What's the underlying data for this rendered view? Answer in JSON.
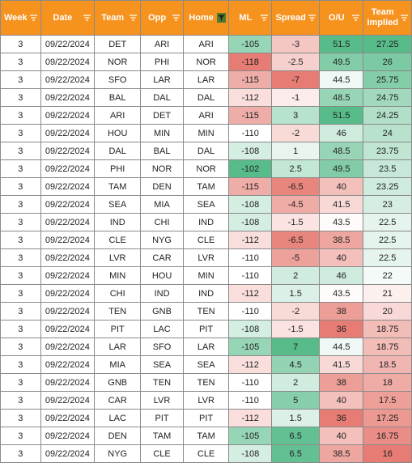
{
  "header": {
    "color": "#f6921e",
    "columns": [
      {
        "key": "week",
        "label": "Week"
      },
      {
        "key": "date",
        "label": "Date"
      },
      {
        "key": "team",
        "label": "Team"
      },
      {
        "key": "opp",
        "label": "Opp"
      },
      {
        "key": "home",
        "label": "Home",
        "filter_active": true
      },
      {
        "key": "ml",
        "label": "ML"
      },
      {
        "key": "spread",
        "label": "Spread"
      },
      {
        "key": "ou",
        "label": "O/U"
      },
      {
        "key": "implied",
        "label": "Team Implied"
      }
    ],
    "filter_icon": "filter-icon"
  },
  "rows": [
    {
      "week": "3",
      "date": "09/22/2024",
      "team": "DET",
      "opp": "ARI",
      "home": "ARI",
      "ml": "-105",
      "spread": "-3",
      "ou": "51.5",
      "implied": "27.25"
    },
    {
      "week": "3",
      "date": "09/22/2024",
      "team": "NOR",
      "opp": "PHI",
      "home": "NOR",
      "ml": "-118",
      "spread": "-2.5",
      "ou": "49.5",
      "implied": "26"
    },
    {
      "week": "3",
      "date": "09/22/2024",
      "team": "SFO",
      "opp": "LAR",
      "home": "LAR",
      "ml": "-115",
      "spread": "-7",
      "ou": "44.5",
      "implied": "25.75"
    },
    {
      "week": "3",
      "date": "09/22/2024",
      "team": "BAL",
      "opp": "DAL",
      "home": "DAL",
      "ml": "-112",
      "spread": "-1",
      "ou": "48.5",
      "implied": "24.75"
    },
    {
      "week": "3",
      "date": "09/22/2024",
      "team": "ARI",
      "opp": "DET",
      "home": "ARI",
      "ml": "-115",
      "spread": "3",
      "ou": "51.5",
      "implied": "24.25"
    },
    {
      "week": "3",
      "date": "09/22/2024",
      "team": "HOU",
      "opp": "MIN",
      "home": "MIN",
      "ml": "-110",
      "spread": "-2",
      "ou": "46",
      "implied": "24"
    },
    {
      "week": "3",
      "date": "09/22/2024",
      "team": "DAL",
      "opp": "BAL",
      "home": "DAL",
      "ml": "-108",
      "spread": "1",
      "ou": "48.5",
      "implied": "23.75"
    },
    {
      "week": "3",
      "date": "09/22/2024",
      "team": "PHI",
      "opp": "NOR",
      "home": "NOR",
      "ml": "-102",
      "spread": "2.5",
      "ou": "49.5",
      "implied": "23.5"
    },
    {
      "week": "3",
      "date": "09/22/2024",
      "team": "TAM",
      "opp": "DEN",
      "home": "TAM",
      "ml": "-115",
      "spread": "-6.5",
      "ou": "40",
      "implied": "23.25"
    },
    {
      "week": "3",
      "date": "09/22/2024",
      "team": "SEA",
      "opp": "MIA",
      "home": "SEA",
      "ml": "-108",
      "spread": "-4.5",
      "ou": "41.5",
      "implied": "23"
    },
    {
      "week": "3",
      "date": "09/22/2024",
      "team": "IND",
      "opp": "CHI",
      "home": "IND",
      "ml": "-108",
      "spread": "-1.5",
      "ou": "43.5",
      "implied": "22.5"
    },
    {
      "week": "3",
      "date": "09/22/2024",
      "team": "CLE",
      "opp": "NYG",
      "home": "CLE",
      "ml": "-112",
      "spread": "-6.5",
      "ou": "38.5",
      "implied": "22.5"
    },
    {
      "week": "3",
      "date": "09/22/2024",
      "team": "LVR",
      "opp": "CAR",
      "home": "LVR",
      "ml": "-110",
      "spread": "-5",
      "ou": "40",
      "implied": "22.5"
    },
    {
      "week": "3",
      "date": "09/22/2024",
      "team": "MIN",
      "opp": "HOU",
      "home": "MIN",
      "ml": "-110",
      "spread": "2",
      "ou": "46",
      "implied": "22"
    },
    {
      "week": "3",
      "date": "09/22/2024",
      "team": "CHI",
      "opp": "IND",
      "home": "IND",
      "ml": "-112",
      "spread": "1.5",
      "ou": "43.5",
      "implied": "21"
    },
    {
      "week": "3",
      "date": "09/22/2024",
      "team": "TEN",
      "opp": "GNB",
      "home": "TEN",
      "ml": "-110",
      "spread": "-2",
      "ou": "38",
      "implied": "20"
    },
    {
      "week": "3",
      "date": "09/22/2024",
      "team": "PIT",
      "opp": "LAC",
      "home": "PIT",
      "ml": "-108",
      "spread": "-1.5",
      "ou": "36",
      "implied": "18.75"
    },
    {
      "week": "3",
      "date": "09/22/2024",
      "team": "LAR",
      "opp": "SFO",
      "home": "LAR",
      "ml": "-105",
      "spread": "7",
      "ou": "44.5",
      "implied": "18.75"
    },
    {
      "week": "3",
      "date": "09/22/2024",
      "team": "MIA",
      "opp": "SEA",
      "home": "SEA",
      "ml": "-112",
      "spread": "4.5",
      "ou": "41.5",
      "implied": "18.5"
    },
    {
      "week": "3",
      "date": "09/22/2024",
      "team": "GNB",
      "opp": "TEN",
      "home": "TEN",
      "ml": "-110",
      "spread": "2",
      "ou": "38",
      "implied": "18"
    },
    {
      "week": "3",
      "date": "09/22/2024",
      "team": "CAR",
      "opp": "LVR",
      "home": "LVR",
      "ml": "-110",
      "spread": "5",
      "ou": "40",
      "implied": "17.5"
    },
    {
      "week": "3",
      "date": "09/22/2024",
      "team": "LAC",
      "opp": "PIT",
      "home": "PIT",
      "ml": "-112",
      "spread": "1.5",
      "ou": "36",
      "implied": "17.25"
    },
    {
      "week": "3",
      "date": "09/22/2024",
      "team": "DEN",
      "opp": "TAM",
      "home": "TAM",
      "ml": "-105",
      "spread": "6.5",
      "ou": "40",
      "implied": "16.75"
    },
    {
      "week": "3",
      "date": "09/22/2024",
      "team": "NYG",
      "opp": "CLE",
      "home": "CLE",
      "ml": "-108",
      "spread": "6.5",
      "ou": "38.5",
      "implied": "16"
    }
  ],
  "colors": {
    "high": "#57bb8a",
    "mid": "#ffffff",
    "low": "#e67c73"
  }
}
